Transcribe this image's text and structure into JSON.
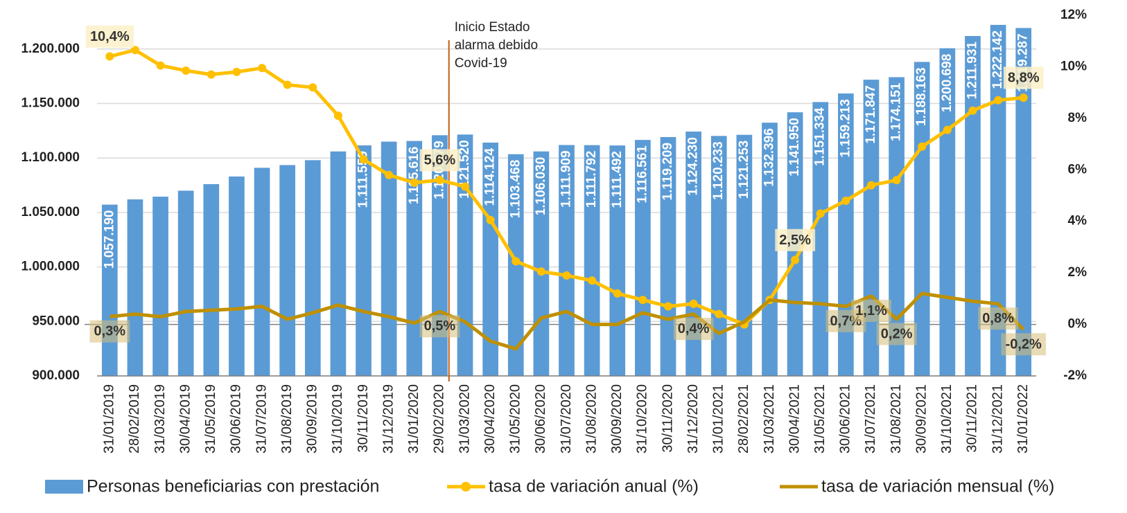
{
  "chart_data": {
    "type": "bar",
    "annotation": [
      "Inicio Estado",
      "alarma debido",
      "Covid-19"
    ],
    "categories": [
      "31/01/2019",
      "28/02/2019",
      "31/03/2019",
      "30/04/2019",
      "31/05/2019",
      "30/06/2019",
      "31/07/2019",
      "31/08/2019",
      "30/09/2019",
      "31/10/2019",
      "30/11/2019",
      "31/12/2019",
      "31/01/2020",
      "29/02/2020",
      "31/03/2020",
      "30/04/2020",
      "31/05/2020",
      "30/06/2020",
      "31/07/2020",
      "31/08/2020",
      "30/09/2020",
      "31/10/2020",
      "30/11/2020",
      "31/12/2020",
      "31/01/2021",
      "28/02/2021",
      "31/03/2021",
      "30/04/2021",
      "31/05/2021",
      "30/06/2021",
      "31/07/2021",
      "31/08/2021",
      "30/09/2021",
      "31/10/2021",
      "30/11/2021",
      "31/12/2021",
      "31/01/2022"
    ],
    "series": [
      {
        "name": "Personas beneficiarias con prestación",
        "type": "bar",
        "color": "#5b9bd5",
        "values": [
          1057190,
          1062000,
          1064500,
          1070000,
          1076000,
          1083000,
          1091000,
          1093500,
          1098000,
          1106000,
          1111559,
          1115000,
          1115616,
          1120879,
          1121520,
          1114124,
          1103468,
          1106030,
          1111909,
          1111792,
          1111492,
          1116561,
          1119209,
          1124230,
          1120233,
          1121253,
          1132396,
          1141950,
          1151334,
          1159213,
          1171847,
          1174151,
          1188163,
          1200698,
          1211931,
          1222142,
          1219287
        ],
        "value_labels": [
          "1.057.190",
          null,
          null,
          null,
          null,
          null,
          null,
          null,
          null,
          null,
          "1.111.559",
          null,
          "1.115.616",
          "1.120.879",
          "1.121.520",
          "1.114.124",
          "1.103.468",
          "1.106.030",
          "1.111.909",
          "1.111.792",
          "1.111.492",
          "1.116.561",
          "1.119.209",
          "1.124.230",
          "1.120.233",
          "1.121.253",
          "1.132.396",
          "1.141.950",
          "1.151.334",
          "1.159.213",
          "1.171.847",
          "1.174.151",
          "1.188.163",
          "1.200.698",
          "1.211.931",
          "1.222.142",
          "1.219.287"
        ]
      },
      {
        "name": "tasa de variación anual (%)",
        "type": "line",
        "axis": "y2",
        "color": "#ffc000",
        "markers": true,
        "values": [
          10.4,
          10.65,
          10.05,
          9.85,
          9.7,
          9.8,
          9.95,
          9.3,
          9.2,
          8.1,
          6.4,
          5.8,
          5.5,
          5.6,
          5.35,
          4.05,
          2.45,
          2.05,
          1.9,
          1.7,
          1.2,
          0.95,
          0.7,
          0.8,
          0.4,
          0.0,
          0.95,
          2.5,
          4.3,
          4.8,
          5.4,
          5.6,
          6.9,
          7.55,
          8.3,
          8.7,
          8.8
        ],
        "value_labels": [
          "10,4%",
          null,
          null,
          null,
          null,
          null,
          null,
          null,
          null,
          null,
          null,
          null,
          null,
          "5,6%",
          null,
          null,
          null,
          null,
          null,
          null,
          null,
          null,
          null,
          null,
          null,
          null,
          null,
          "2,5%",
          null,
          null,
          null,
          null,
          null,
          null,
          null,
          null,
          "8,8%"
        ]
      },
      {
        "name": "tasa de variación mensual (%)",
        "type": "line",
        "axis": "y2",
        "color": "#bf9000",
        "markers": false,
        "values": [
          0.3,
          0.4,
          0.3,
          0.5,
          0.55,
          0.6,
          0.7,
          0.2,
          0.45,
          0.75,
          0.5,
          0.3,
          0.05,
          0.5,
          0.1,
          -0.65,
          -0.95,
          0.25,
          0.5,
          0.0,
          0.0,
          0.45,
          0.2,
          0.4,
          -0.35,
          0.1,
          0.95,
          0.85,
          0.8,
          0.7,
          1.1,
          0.2,
          1.2,
          1.05,
          0.9,
          0.8,
          -0.2
        ],
        "value_labels": [
          "0,3%",
          null,
          null,
          null,
          null,
          null,
          null,
          null,
          null,
          null,
          null,
          null,
          null,
          "0,5%",
          null,
          null,
          null,
          null,
          null,
          null,
          null,
          null,
          null,
          "0,4%",
          null,
          null,
          null,
          null,
          null,
          "0,7%",
          "1,1%",
          "0,2%",
          null,
          null,
          null,
          "0,8%",
          "-0,2%"
        ]
      }
    ],
    "ylim": [
      900000,
      1231000
    ],
    "yticks": [
      {
        "value": 900000,
        "label": "900.000"
      },
      {
        "value": 950000,
        "label": "950.000"
      },
      {
        "value": 1000000,
        "label": "1.000.000"
      },
      {
        "value": 1050000,
        "label": "1.050.000"
      },
      {
        "value": 1100000,
        "label": "1.100.000"
      },
      {
        "value": 1150000,
        "label": "1.150.000"
      },
      {
        "value": 1200000,
        "label": "1.200.000"
      }
    ],
    "y2lim": [
      -2,
      12
    ],
    "y2ticks": [
      {
        "value": -2,
        "label": "-2%"
      },
      {
        "value": 0,
        "label": "0%"
      },
      {
        "value": 2,
        "label": "2%"
      },
      {
        "value": 4,
        "label": "4%"
      },
      {
        "value": 6,
        "label": "6%"
      },
      {
        "value": 8,
        "label": "8%"
      },
      {
        "value": 10,
        "label": "10%"
      },
      {
        "value": 12,
        "label": "12%"
      }
    ],
    "grid": true
  }
}
